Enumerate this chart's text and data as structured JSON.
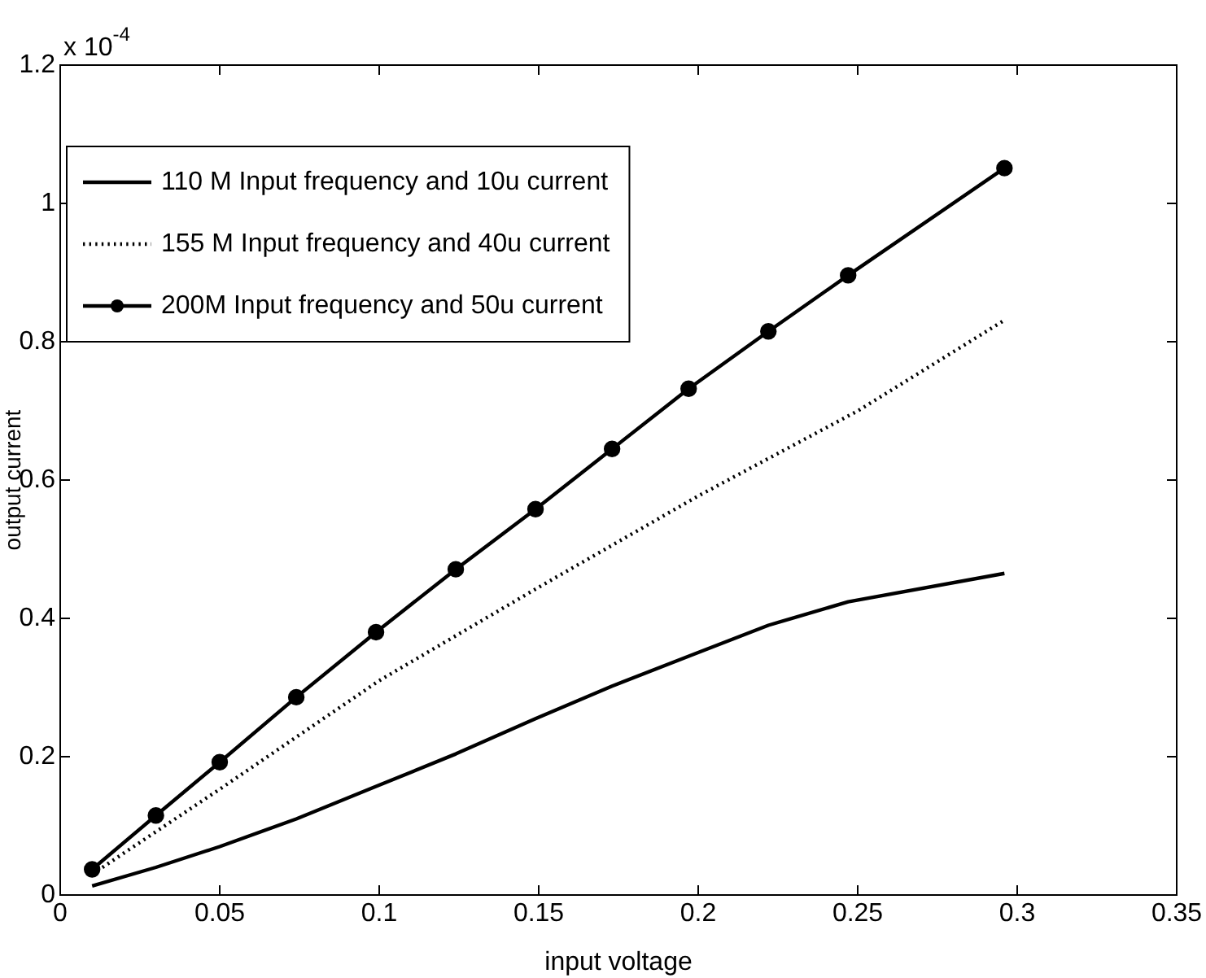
{
  "chart_data": {
    "type": "line",
    "xlabel": "input voltage",
    "ylabel": "output current",
    "annotations": [
      "x 10$^{-4}$"
    ],
    "xlim": [
      0,
      0.35
    ],
    "xticks": [
      0,
      0.05,
      0.1,
      0.15,
      0.2,
      0.25,
      0.3,
      0.35
    ],
    "ylim": [
      0,
      1.2
    ],
    "yticks": [
      0,
      0.2,
      0.4,
      0.6,
      0.8,
      1,
      1.2
    ],
    "grid": false,
    "legend": "top left",
    "series": [
      {
        "name": "110 M Input frequency and 10u current",
        "color": "#000000",
        "line_style": "solid",
        "marker": "none",
        "x": [
          0.01,
          0.03,
          0.05,
          0.074,
          0.099,
          0.124,
          0.149,
          0.173,
          0.198,
          0.222,
          0.247,
          0.296
        ],
        "values": [
          0.013,
          0.04,
          0.07,
          0.11,
          0.157,
          0.204,
          0.255,
          0.302,
          0.347,
          0.39,
          0.424,
          0.465
        ]
      },
      {
        "name": "155 M Input frequency and 40u current",
        "color": "#000000",
        "line_style": "dotted",
        "marker": "none",
        "x": [
          0.01,
          0.05,
          0.1,
          0.15,
          0.2,
          0.25,
          0.296
        ],
        "values": [
          0.03,
          0.153,
          0.31,
          0.445,
          0.577,
          0.7,
          0.831
        ]
      },
      {
        "name": "200M Input frequency and 50u current",
        "color": "#000000",
        "line_style": "solid",
        "marker": "circle",
        "x": [
          0.01,
          0.03,
          0.05,
          0.074,
          0.099,
          0.124,
          0.149,
          0.173,
          0.197,
          0.222,
          0.247,
          0.296
        ],
        "values": [
          0.037,
          0.115,
          0.192,
          0.286,
          0.38,
          0.471,
          0.558,
          0.645,
          0.732,
          0.815,
          0.896,
          1.051
        ]
      }
    ]
  }
}
